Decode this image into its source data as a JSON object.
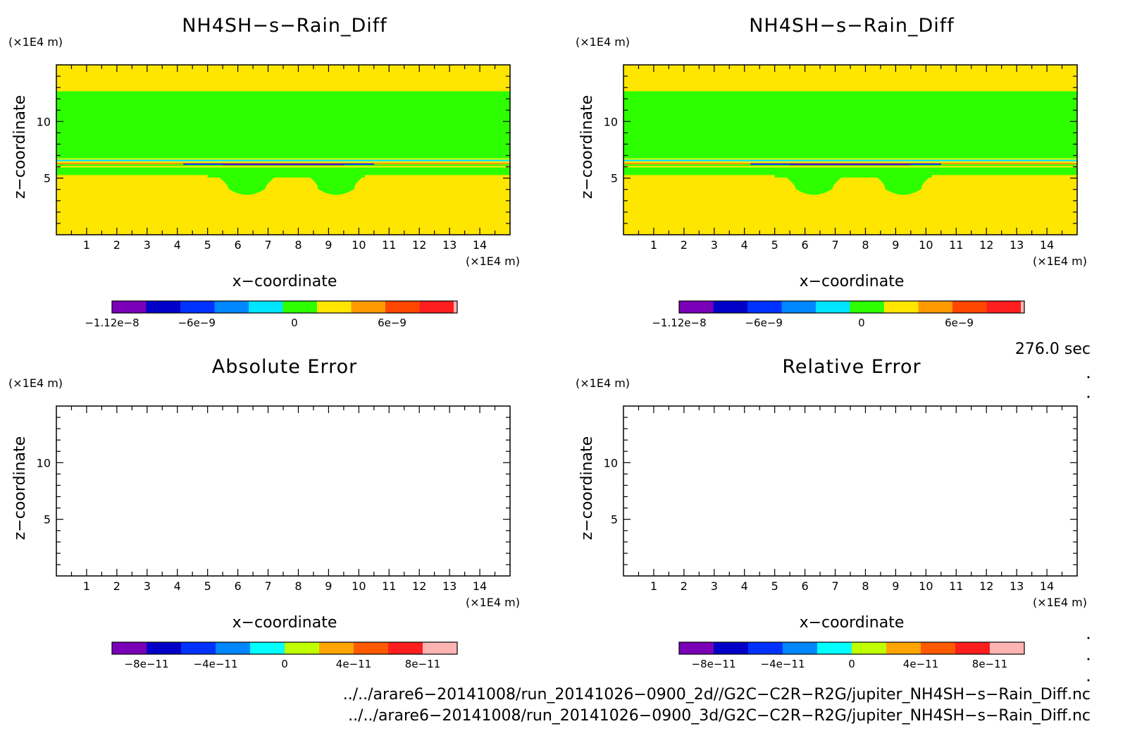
{
  "chart_data": [
    {
      "type": "heatmap",
      "title": "NH4SH−s−Rain_Diff",
      "xlabel": "x−coordinate",
      "ylabel": "z−coordinate",
      "x_unit": "(×1E4 m)",
      "y_unit": "(×1E4 m)",
      "xlim": [
        0,
        15
      ],
      "ylim": [
        0,
        15
      ],
      "x_ticks": [
        1,
        2,
        3,
        4,
        5,
        6,
        7,
        8,
        9,
        10,
        11,
        12,
        13,
        14
      ],
      "y_ticks": [
        5,
        10
      ],
      "grid": false,
      "colorbar": {
        "colors": [
          "#7a00b8",
          "#0000c8",
          "#0032ff",
          "#0087ff",
          "#00e5ff",
          "#2dff00",
          "#ffe600",
          "#ff9b00",
          "#ff4600",
          "#ff1e1e",
          "#ffb4b4"
        ],
        "tick_labels": [
          "−1.12e−8",
          "−6e−9",
          "0",
          "6e−9"
        ],
        "tick_values": [
          -1.12e-08,
          -6e-09,
          0,
          6e-09
        ],
        "range": [
          -1.12e-08,
          1e-08
        ]
      },
      "bands": [
        {
          "z_from": 0,
          "z_to": 5.3,
          "value": "yellow"
        },
        {
          "z_from": 5.3,
          "z_to": 5.8,
          "value": "green"
        },
        {
          "z_from": 5.8,
          "z_to": 6.9,
          "value": "mixed-thin-layers"
        },
        {
          "z_from": 6.9,
          "z_to": 12.7,
          "value": "green"
        },
        {
          "z_from": 12.7,
          "z_to": 15,
          "value": "yellow"
        }
      ]
    },
    {
      "type": "heatmap",
      "title": "NH4SH−s−Rain_Diff",
      "xlabel": "x−coordinate",
      "ylabel": "z−coordinate",
      "x_unit": "(×1E4 m)",
      "y_unit": "(×1E4 m)",
      "xlim": [
        0,
        15
      ],
      "ylim": [
        0,
        15
      ],
      "x_ticks": [
        1,
        2,
        3,
        4,
        5,
        6,
        7,
        8,
        9,
        10,
        11,
        12,
        13,
        14
      ],
      "y_ticks": [
        5,
        10
      ],
      "grid": false,
      "colorbar": {
        "colors": [
          "#7a00b8",
          "#0000c8",
          "#0032ff",
          "#0087ff",
          "#00e5ff",
          "#2dff00",
          "#ffe600",
          "#ff9b00",
          "#ff4600",
          "#ff1e1e",
          "#ffb4b4"
        ],
        "tick_labels": [
          "−1.12e−8",
          "−6e−9",
          "0",
          "6e−9"
        ],
        "tick_values": [
          -1.12e-08,
          -6e-09,
          0,
          6e-09
        ],
        "range": [
          -1.12e-08,
          1e-08
        ]
      },
      "bands": [
        {
          "z_from": 0,
          "z_to": 5.3,
          "value": "yellow"
        },
        {
          "z_from": 5.3,
          "z_to": 5.8,
          "value": "green"
        },
        {
          "z_from": 5.8,
          "z_to": 6.9,
          "value": "mixed-thin-layers"
        },
        {
          "z_from": 6.9,
          "z_to": 12.7,
          "value": "green"
        },
        {
          "z_from": 12.7,
          "z_to": 15,
          "value": "yellow"
        }
      ]
    },
    {
      "type": "heatmap",
      "title": "Absolute Error",
      "xlabel": "x−coordinate",
      "ylabel": "z−coordinate",
      "x_unit": "(×1E4 m)",
      "y_unit": "(×1E4 m)",
      "xlim": [
        0,
        15
      ],
      "ylim": [
        0,
        15
      ],
      "x_ticks": [
        1,
        2,
        3,
        4,
        5,
        6,
        7,
        8,
        9,
        10,
        11,
        12,
        13,
        14
      ],
      "y_ticks": [
        5,
        10
      ],
      "grid": false,
      "colorbar": {
        "colors": [
          "#7a00b8",
          "#0000c8",
          "#0032ff",
          "#0087ff",
          "#00ffff",
          "#c0ff00",
          "#ffa500",
          "#ff5a00",
          "#ff1e1e",
          "#ffb4b4"
        ],
        "tick_labels": [
          "−8e−11",
          "−4e−11",
          "0",
          "4e−11",
          "8e−11"
        ],
        "tick_values": [
          -8e-11,
          -4e-11,
          0,
          4e-11,
          8e-11
        ],
        "range": [
          -1e-10,
          1e-10
        ]
      },
      "bands": []
    },
    {
      "type": "heatmap",
      "title": "Relative Error",
      "xlabel": "x−coordinate",
      "ylabel": "z−coordinate",
      "x_unit": "(×1E4 m)",
      "y_unit": "(×1E4 m)",
      "xlim": [
        0,
        15
      ],
      "ylim": [
        0,
        15
      ],
      "x_ticks": [
        1,
        2,
        3,
        4,
        5,
        6,
        7,
        8,
        9,
        10,
        11,
        12,
        13,
        14
      ],
      "y_ticks": [
        5,
        10
      ],
      "grid": false,
      "colorbar": {
        "colors": [
          "#7a00b8",
          "#0000c8",
          "#0032ff",
          "#0087ff",
          "#00ffff",
          "#c0ff00",
          "#ffa500",
          "#ff5a00",
          "#ff1e1e",
          "#ffb4b4"
        ],
        "tick_labels": [
          "−8e−11",
          "−4e−11",
          "0",
          "4e−11",
          "8e−11"
        ],
        "tick_values": [
          -8e-11,
          -4e-11,
          0,
          4e-11,
          8e-11
        ],
        "range": [
          -1e-10,
          1e-10
        ]
      },
      "bands": []
    }
  ],
  "timestamp": "276.0 sec",
  "footer": [
    "../../arare6−20141008/run_20141026−0900_2d//G2C−C2R−R2G/jupiter_NH4SH−s−Rain_Diff.nc",
    "../../arare6−20141008/run_20141026−0900_3d/G2C−C2R−R2G/jupiter_NH4SH−s−Rain_Diff.nc"
  ],
  "colors": {
    "field_yellow": "#ffe600",
    "field_green": "#2dff00"
  }
}
